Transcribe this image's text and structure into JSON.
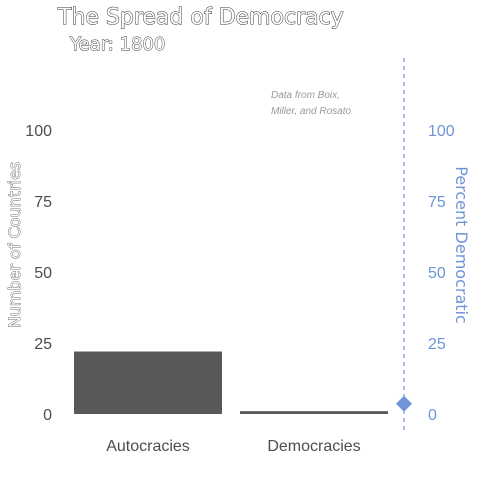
{
  "chart_data": {
    "type": "bar",
    "title": "The Spread of Democracy",
    "subtitle": "Year: 1800",
    "annotation": [
      "Data from Boix,",
      "Miller, and Rosato"
    ],
    "categories": [
      "Autocracies",
      "Democracies"
    ],
    "values": [
      22,
      1
    ],
    "ylabel": "Number of Countries",
    "ylim": [
      0,
      120
    ],
    "yticks": [
      0,
      25,
      50,
      75,
      100
    ],
    "secondary_axis": {
      "label": "Percent Democratic",
      "ticks": [
        0,
        25,
        50,
        75,
        100
      ],
      "value": 4.3
    },
    "bar_color": "#595959",
    "accent_color": "#6d95d8",
    "grid": false
  }
}
